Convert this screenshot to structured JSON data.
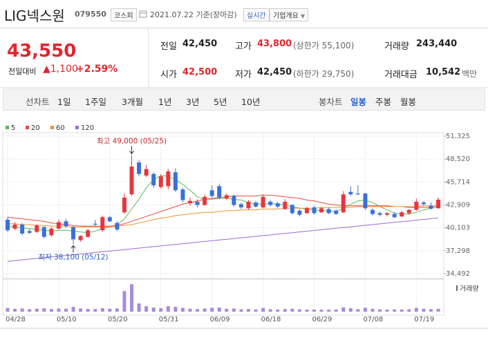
{
  "header": {
    "name": "LIG넥스원",
    "code": "079550",
    "market": "코스피",
    "date": "2021.07.22 기준(장마감)",
    "realtime": "실시간",
    "company": "기업개요"
  },
  "quote": {
    "price": "43,550",
    "change_label": "전일대비",
    "change": "▲1,100",
    "change_pct": "+2.59%",
    "color": "#e0262e",
    "fields": [
      {
        "label": "전일",
        "value": "42,450"
      },
      {
        "label": "고가",
        "value": "43,800",
        "note": "(상한가 55,100)",
        "color": "#e0262e"
      },
      {
        "label": "거래량",
        "value": "243,440"
      },
      {
        "label": "시가",
        "value": "42,500",
        "color": "#e0262e"
      },
      {
        "label": "저가",
        "value": "42,450",
        "note": "(하한가 29,750)"
      },
      {
        "label": "거래대금",
        "value": "10,542",
        "note": "백만"
      }
    ]
  },
  "tabs": {
    "line_label": "선차트",
    "line_periods": [
      "1일",
      "1주일",
      "3개월",
      "1년",
      "3년",
      "5년",
      "10년"
    ],
    "candle_label": "봉차트",
    "candle_periods": [
      "일봉",
      "주봉",
      "월봉"
    ],
    "selected_candle_period": 0
  },
  "chart_data": {
    "type": "candlestick",
    "categories": [
      "04/28",
      null,
      null,
      null,
      null,
      null,
      null,
      "05/10",
      null,
      null,
      null,
      null,
      null,
      null,
      "05/20",
      null,
      null,
      null,
      null,
      null,
      null,
      "05/31",
      null,
      null,
      null,
      null,
      null,
      null,
      "06/09",
      null,
      null,
      null,
      null,
      null,
      null,
      "06/18",
      null,
      null,
      null,
      null,
      null,
      null,
      "06/29",
      null,
      null,
      null,
      null,
      null,
      null,
      "07/08",
      null,
      null,
      null,
      null,
      null,
      null,
      "07/19",
      null,
      null,
      null
    ],
    "open": [
      41100,
      40000,
      40500,
      39700,
      39600,
      40200,
      39200,
      40000,
      40900,
      40200,
      38600,
      39000,
      40600,
      39800,
      41400,
      40700,
      42000,
      44200,
      48100,
      46500,
      46700,
      45100,
      45200,
      46900,
      44800,
      43100,
      43300,
      42900,
      44700,
      45200,
      43700,
      44000,
      43000,
      42500,
      43200,
      42600,
      43300,
      43100,
      42400,
      42900,
      42200,
      41900,
      42600,
      42000,
      42400,
      42200,
      42000,
      44500,
      44300,
      44300,
      42300,
      41900,
      41700,
      41800,
      41500,
      41900,
      42300,
      43200,
      42800,
      42500
    ],
    "high": [
      41400,
      40800,
      40700,
      40000,
      40600,
      40300,
      40200,
      41100,
      41200,
      40300,
      39200,
      40000,
      41100,
      41600,
      41600,
      40900,
      44300,
      49000,
      48400,
      47800,
      46900,
      46700,
      47300,
      47400,
      45000,
      43800,
      43600,
      44200,
      45300,
      45500,
      44300,
      44200,
      43200,
      43500,
      43400,
      44200,
      43500,
      43300,
      43600,
      43000,
      42400,
      42700,
      42800,
      42700,
      42600,
      42400,
      44600,
      45200,
      45300,
      44400,
      42500,
      42100,
      42000,
      42000,
      42200,
      42400,
      43700,
      43400,
      43200,
      43800
    ],
    "low": [
      39600,
      39800,
      39200,
      39300,
      39500,
      38800,
      39000,
      39900,
      40100,
      38100,
      38400,
      38900,
      40300,
      39600,
      40800,
      39700,
      41800,
      44000,
      46400,
      46300,
      45000,
      44900,
      44800,
      44500,
      43300,
      42800,
      42600,
      42800,
      43800,
      43600,
      43500,
      42700,
      42400,
      42300,
      42600,
      42500,
      42700,
      42500,
      42300,
      41700,
      41500,
      41800,
      41700,
      41900,
      41800,
      41700,
      41900,
      44000,
      44100,
      42300,
      41600,
      41500,
      41500,
      41300,
      41400,
      41700,
      42200,
      42800,
      42300,
      42450
    ],
    "close": [
      39800,
      40500,
      39400,
      39500,
      40400,
      39000,
      40000,
      40800,
      40300,
      38700,
      39100,
      39800,
      40500,
      41400,
      40900,
      39900,
      43800,
      47600,
      46700,
      47300,
      45300,
      46400,
      47000,
      44700,
      43500,
      43400,
      42900,
      43900,
      44000,
      43800,
      44100,
      42900,
      42600,
      43300,
      42700,
      43900,
      42900,
      42700,
      43300,
      41900,
      41700,
      42500,
      41900,
      42500,
      41900,
      41800,
      44200,
      44200,
      44200,
      42500,
      41800,
      41700,
      41900,
      41400,
      42000,
      42300,
      43300,
      43000,
      42450,
      43550
    ],
    "up_color": "#e8363e",
    "down_color": "#3a71d9",
    "moving_averages": [
      {
        "name": "5",
        "color": "#5cb85c",
        "values": [
          40300,
          40200,
          40100,
          40000,
          39900,
          39800,
          39700,
          39800,
          39800,
          39700,
          39600,
          39500,
          39700,
          40000,
          40200,
          40500,
          41200,
          42400,
          43600,
          45000,
          46000,
          46500,
          46400,
          46000,
          45400,
          44700,
          43900,
          43600,
          43600,
          43700,
          43700,
          43600,
          43500,
          43200,
          43000,
          43000,
          43100,
          43000,
          42900,
          42700,
          42500,
          42400,
          42300,
          42200,
          42200,
          42100,
          42500,
          43000,
          43400,
          43500,
          43200,
          42700,
          42300,
          41900,
          41800,
          41800,
          42000,
          42300,
          42500,
          42800
        ]
      },
      {
        "name": "20",
        "color": "#e8483e",
        "values": [
          41400,
          41300,
          41200,
          41100,
          41000,
          40900,
          40700,
          40600,
          40500,
          40400,
          40300,
          40300,
          40300,
          40300,
          40300,
          40400,
          40600,
          40900,
          41200,
          41500,
          41800,
          42100,
          42400,
          42700,
          43000,
          43200,
          43400,
          43600,
          43700,
          43800,
          43900,
          44000,
          44000,
          44000,
          44000,
          44100,
          44100,
          44000,
          43900,
          43800,
          43700,
          43500,
          43400,
          43200,
          43000,
          42900,
          42800,
          42800,
          42800,
          42800,
          42800,
          42800,
          42800,
          42700,
          42700,
          42600,
          42600,
          42600,
          42600,
          42700
        ]
      },
      {
        "name": "60",
        "color": "#f0922c",
        "values": [
          40600,
          40600,
          40500,
          40500,
          40400,
          40400,
          40300,
          40300,
          40300,
          40200,
          40200,
          40200,
          40200,
          40200,
          40200,
          40300,
          40400,
          40500,
          40700,
          40900,
          41100,
          41300,
          41400,
          41600,
          41700,
          41800,
          41900,
          42000,
          42000,
          42100,
          42200,
          42200,
          42300,
          42300,
          42300,
          42400,
          42400,
          42400,
          42500,
          42500,
          42500,
          42500,
          42500,
          42600,
          42600,
          42600,
          42600,
          42600,
          42700,
          42700,
          42700,
          42700,
          42700,
          42700,
          42700,
          42700,
          42700,
          42800,
          42800,
          42800
        ]
      },
      {
        "name": "120",
        "color": "#9c6bd4",
        "values": [
          36000,
          36090,
          36180,
          36270,
          36360,
          36450,
          36540,
          36630,
          36720,
          36810,
          36900,
          36990,
          37080,
          37170,
          37260,
          37350,
          37440,
          37530,
          37620,
          37710,
          37800,
          37890,
          37980,
          38070,
          38160,
          38250,
          38340,
          38430,
          38520,
          38610,
          38700,
          38790,
          38880,
          38970,
          39060,
          39150,
          39240,
          39330,
          39420,
          39510,
          39600,
          39690,
          39780,
          39870,
          39960,
          40050,
          40140,
          40230,
          40320,
          40410,
          40500,
          40590,
          40680,
          40770,
          40860,
          40950,
          41040,
          41130,
          41220,
          41310
        ]
      }
    ],
    "volume": {
      "name": "거래량",
      "color": "#a88bd8",
      "vlim": [
        0,
        2600000
      ],
      "values": [
        320000,
        250000,
        280000,
        210000,
        260000,
        300000,
        230000,
        270000,
        260000,
        420000,
        280000,
        240000,
        230000,
        300000,
        260000,
        280000,
        1800000,
        2400000,
        720000,
        480000,
        360000,
        300000,
        480000,
        420000,
        330000,
        260000,
        220000,
        280000,
        340000,
        360000,
        250000,
        280000,
        200000,
        230000,
        190000,
        320000,
        210000,
        190000,
        230000,
        250000,
        200000,
        180000,
        190000,
        170000,
        180000,
        190000,
        380000,
        300000,
        220000,
        340000,
        250000,
        200000,
        180000,
        200000,
        190000,
        210000,
        330000,
        250000,
        220000,
        243440
      ]
    },
    "ylim": [
      34492,
      51325
    ],
    "yticks": [
      {
        "value": 51325,
        "label": "51,325"
      },
      {
        "value": 48520,
        "label": "48,520"
      },
      {
        "value": 45714,
        "label": "45,714"
      },
      {
        "value": 42909,
        "label": "42,909"
      },
      {
        "value": 40103,
        "label": "40,103"
      },
      {
        "value": 37298,
        "label": "37,298"
      },
      {
        "value": 34492,
        "label": "34,492"
      }
    ],
    "grid": true,
    "annotations": [
      {
        "text": "최고 49,000 (05/25)",
        "index": 17,
        "value": 49000,
        "color": "#c8262e"
      },
      {
        "text": "최저 38,100 (05/12)",
        "index": 9,
        "value": 38100,
        "color": "#2a5cbf"
      }
    ]
  }
}
